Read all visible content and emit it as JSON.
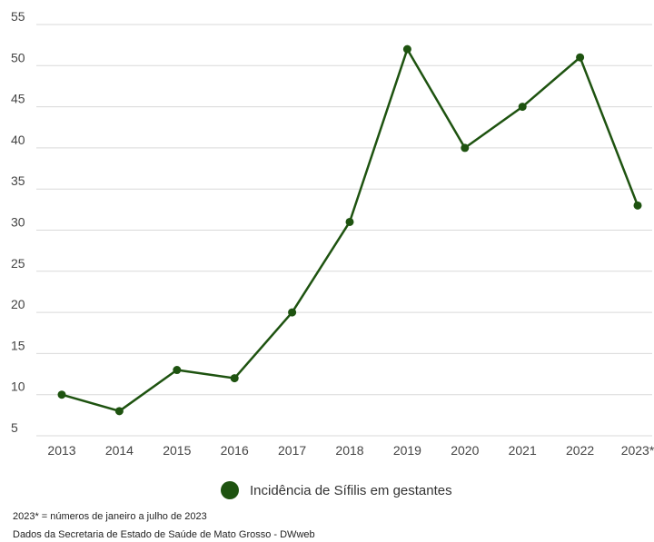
{
  "chart_data": {
    "type": "line",
    "categories": [
      "2013",
      "2014",
      "2015",
      "2016",
      "2017",
      "2018",
      "2019",
      "2020",
      "2021",
      "2022",
      "2023*"
    ],
    "series": [
      {
        "name": "Incidência de Sífilis em gestantes",
        "values": [
          10,
          8,
          13,
          12,
          20,
          31,
          52,
          40,
          45,
          51,
          33
        ],
        "color": "#1e5310"
      }
    ],
    "y_ticks": [
      "5",
      "10",
      "15",
      "20",
      "25",
      "30",
      "35",
      "40",
      "45",
      "50",
      "55"
    ],
    "ylim": [
      5,
      55
    ],
    "grid": "horizontal",
    "legend_position": "bottom-center",
    "title": "",
    "xlabel": "",
    "ylabel": ""
  },
  "notes": {
    "footnote": "2023* = números de janeiro a julho de 2023",
    "source": "Dados da Secretaria de Estado de Saúde de Mato Grosso - DWweb"
  }
}
